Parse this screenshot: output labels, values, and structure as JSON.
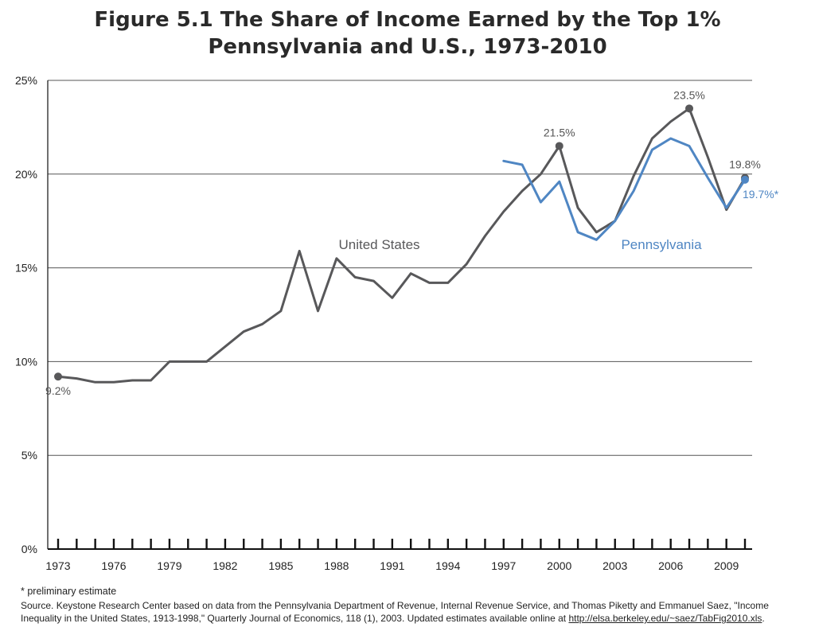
{
  "title_line1": "Figure 5.1 The Share of Income Earned by the Top 1%",
  "title_line2": "Pennsylvania and U.S., 1973-2010",
  "footnote": "* preliminary estimate",
  "source_text": "Source. Keystone Research Center based on data from the Pennsylvania Department of Revenue, Internal Revenue Service, and Thomas Piketty and Emmanuel Saez, \"Income Inequality in the United States, 1913-1998,\" Quarterly Journal of Economics, 118 (1), 2003. Updated estimates available online at ",
  "source_link": "http://elsa.berkeley.edu/~saez/TabFig2010.xls",
  "source_end": ".",
  "colors": {
    "us": "#58585a",
    "pa": "#4f86c3",
    "grid": "#555555",
    "axis": "#111111"
  },
  "chart_data": {
    "type": "line",
    "title": "Figure 5.1 The Share of Income Earned by the Top 1% Pennsylvania and U.S., 1973-2010",
    "xlim": [
      1973,
      2010
    ],
    "ylim": [
      0,
      25
    ],
    "y_ticks": [
      {
        "value": 0,
        "label": "0%"
      },
      {
        "value": 5,
        "label": "5%"
      },
      {
        "value": 10,
        "label": "10%"
      },
      {
        "value": 15,
        "label": "15%"
      },
      {
        "value": 20,
        "label": "20%"
      },
      {
        "value": 25,
        "label": "25%"
      }
    ],
    "x_tick_labels": [
      1973,
      1976,
      1979,
      1982,
      1985,
      1988,
      1991,
      1994,
      1997,
      2000,
      2003,
      2006,
      2009
    ],
    "grid": "horizontal",
    "series": [
      {
        "name": "United States",
        "color": "#58585a",
        "x": [
          1973,
          1974,
          1975,
          1976,
          1977,
          1978,
          1979,
          1980,
          1981,
          1982,
          1983,
          1984,
          1985,
          1986,
          1987,
          1988,
          1989,
          1990,
          1991,
          1992,
          1993,
          1994,
          1995,
          1996,
          1997,
          1998,
          1999,
          2000,
          2001,
          2002,
          2003,
          2004,
          2005,
          2006,
          2007,
          2008,
          2009,
          2010
        ],
        "y": [
          9.2,
          9.1,
          8.9,
          8.9,
          9.0,
          9.0,
          10.0,
          10.0,
          10.0,
          10.8,
          11.6,
          12.0,
          12.7,
          15.9,
          12.7,
          15.5,
          14.5,
          14.3,
          13.4,
          14.7,
          14.2,
          14.2,
          15.2,
          16.7,
          18.0,
          19.1,
          20.0,
          21.5,
          18.2,
          16.9,
          17.5,
          19.9,
          21.9,
          22.8,
          23.5,
          20.9,
          18.1,
          19.8
        ]
      },
      {
        "name": "Pennsylvania",
        "color": "#4f86c3",
        "x": [
          1997,
          1998,
          1999,
          2000,
          2001,
          2002,
          2003,
          2004,
          2005,
          2006,
          2007,
          2008,
          2009,
          2010
        ],
        "y": [
          20.7,
          20.5,
          18.5,
          19.6,
          16.9,
          16.5,
          17.5,
          19.1,
          21.3,
          21.9,
          21.5,
          19.8,
          18.2,
          19.7
        ]
      }
    ],
    "annotations": [
      {
        "series": "United States",
        "x": 1973,
        "y": 9.2,
        "label": "9.2%",
        "pos": "below"
      },
      {
        "series": "United States",
        "x": 2000,
        "y": 21.5,
        "label": "21.5%",
        "pos": "above"
      },
      {
        "series": "United States",
        "x": 2007,
        "y": 23.5,
        "label": "23.5%",
        "pos": "above"
      },
      {
        "series": "United States",
        "x": 2010,
        "y": 19.8,
        "label": "19.8%",
        "pos": "above"
      },
      {
        "series": "Pennsylvania",
        "x": 2010,
        "y": 19.7,
        "label": "19.7%*",
        "pos": "right"
      }
    ],
    "series_labels": [
      {
        "text": "United States",
        "series": "United States",
        "x": 1990.3,
        "y": 16.0
      },
      {
        "text": "Pennsylvania",
        "series": "Pennsylvania",
        "x": 2005.5,
        "y": 16.0
      }
    ]
  }
}
